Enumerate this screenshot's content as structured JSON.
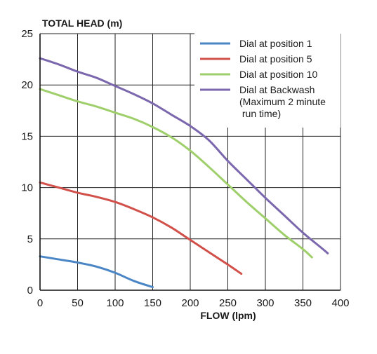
{
  "chart_data": {
    "type": "line",
    "ylabel": "TOTAL HEAD (m)",
    "xlabel": "FLOW (lpm)",
    "xlim": [
      0,
      400
    ],
    "ylim": [
      0,
      25
    ],
    "xticks": [
      "0",
      "50",
      "100",
      "150",
      "200",
      "250",
      "300",
      "350",
      "400"
    ],
    "yticks": [
      "0",
      "5",
      "10",
      "15",
      "20",
      "25"
    ],
    "grid": true,
    "legend_position": "top-right",
    "series": [
      {
        "name": "Dial at position 1",
        "color": "#4a86c5",
        "x": [
          0,
          25,
          50,
          75,
          100,
          125,
          150
        ],
        "y": [
          3.3,
          3.0,
          2.7,
          2.3,
          1.7,
          0.9,
          0.3
        ]
      },
      {
        "name": "Dial at position 5",
        "color": "#d2504a",
        "x": [
          0,
          25,
          50,
          75,
          100,
          125,
          150,
          175,
          200,
          225,
          250,
          268
        ],
        "y": [
          10.5,
          10.0,
          9.5,
          9.1,
          8.6,
          7.9,
          7.1,
          6.1,
          4.9,
          3.7,
          2.5,
          1.6
        ]
      },
      {
        "name": "Dial at position 10",
        "color": "#9fcf6b",
        "x": [
          0,
          25,
          50,
          75,
          100,
          125,
          150,
          175,
          200,
          225,
          250,
          275,
          300,
          325,
          350,
          362
        ],
        "y": [
          19.6,
          19.0,
          18.4,
          17.9,
          17.3,
          16.7,
          15.9,
          14.9,
          13.6,
          12.0,
          10.3,
          8.6,
          7.0,
          5.4,
          4.0,
          3.2
        ]
      },
      {
        "name": "Dial at Backwash (Maximum 2 minute run time)",
        "legend_lines": [
          "Dial at Backwash",
          "(Maximum 2 minute",
          " run time)"
        ],
        "color": "#7b67ad",
        "x": [
          0,
          25,
          50,
          75,
          100,
          125,
          150,
          175,
          200,
          225,
          250,
          275,
          300,
          325,
          350,
          375,
          383
        ],
        "y": [
          22.6,
          22.0,
          21.3,
          20.7,
          19.9,
          19.1,
          18.2,
          17.1,
          16.0,
          14.6,
          12.6,
          10.8,
          9.0,
          7.3,
          5.6,
          4.1,
          3.6
        ]
      }
    ]
  }
}
